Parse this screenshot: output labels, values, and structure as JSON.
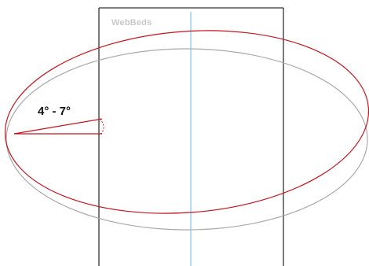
{
  "logo": {
    "text": "WebBeds",
    "color": "#c9c9c9"
  },
  "angle_label": {
    "text": "4° - 7°",
    "color": "#111111"
  },
  "colors": {
    "panel_outline": "#333333",
    "center_line": "#6fb7e0",
    "red_ellipse": "#c0161f",
    "gray_ellipse": "#a9a9a9",
    "angle_lines": "#c0161f",
    "arc_dotted": "#c0161f"
  }
}
